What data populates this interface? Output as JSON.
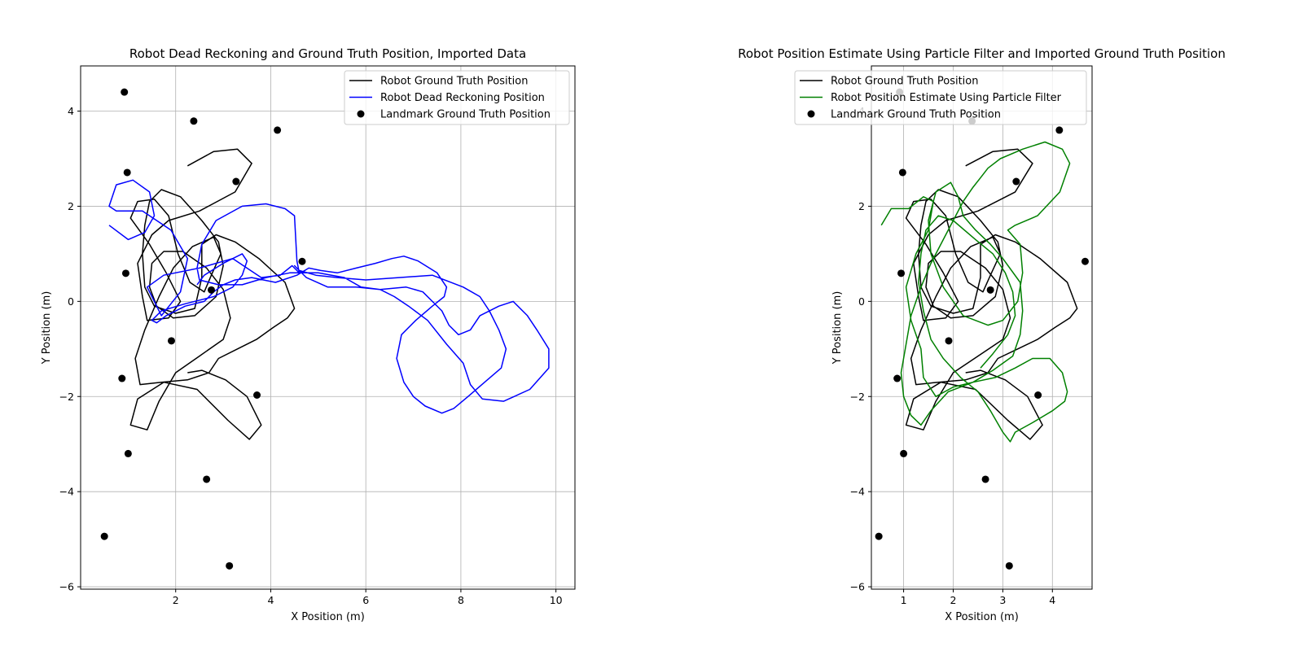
{
  "chart_data": [
    {
      "type": "line",
      "title": "Robot Dead Reckoning and Ground Truth Position, Imported Data",
      "xlabel": "X Position (m)",
      "ylabel": "Y Position (m)",
      "xlim": [
        0.0,
        10.4
      ],
      "ylim": [
        -6.05,
        4.95
      ],
      "xticks": [
        2,
        4,
        6,
        8,
        10
      ],
      "yticks": [
        -6,
        -4,
        -2,
        0,
        2,
        4
      ],
      "xtick_labels": [
        "2",
        "4",
        "6",
        "8",
        "10"
      ],
      "ytick_labels": [
        "−6",
        "−4",
        "−2",
        "0",
        "2",
        "4"
      ],
      "grid": true,
      "legend_position": "top-right",
      "series": [
        {
          "name": "Robot Ground Truth Position",
          "color": "#000000",
          "kind": "line",
          "x": [
            2.25,
            2.8,
            3.3,
            3.6,
            3.25,
            2.5,
            1.85,
            1.5,
            1.2,
            1.3,
            1.4,
            1.85,
            2.1,
            1.8,
            1.45,
            1.05,
            1.2,
            1.55,
            1.85,
            2.05,
            2.3,
            2.6,
            2.75,
            2.95,
            2.8,
            2.35,
            1.95,
            1.65,
            1.35,
            1.15,
            1.25,
            1.7,
            2.25,
            2.7,
            2.9,
            3.3,
            3.7,
            4.05,
            4.35,
            4.5,
            4.3,
            3.75,
            3.25,
            2.85,
            2.55,
            2.55,
            2.4,
            2.0,
            1.55,
            1.35,
            1.3,
            1.35,
            1.45,
            1.7,
            2.1,
            2.55,
            2.9,
            3.0,
            2.85,
            2.4,
            1.95,
            1.6,
            1.45,
            1.5,
            1.75,
            2.15,
            2.65,
            3.0,
            3.15,
            3.0,
            2.5,
            2.0,
            1.65,
            1.4,
            1.05,
            1.2,
            1.75,
            2.45,
            3.1,
            3.55,
            3.8,
            3.5,
            3.05,
            2.55,
            2.25
          ],
          "y": [
            2.85,
            3.15,
            3.2,
            2.9,
            2.3,
            1.9,
            1.7,
            1.4,
            0.8,
            0.1,
            -0.4,
            -0.35,
            0.0,
            0.6,
            1.2,
            1.75,
            2.1,
            2.15,
            1.8,
            1.0,
            0.4,
            0.2,
            0.55,
            1.0,
            1.35,
            1.15,
            0.7,
            0.1,
            -0.6,
            -1.2,
            -1.75,
            -1.7,
            -1.65,
            -1.5,
            -1.2,
            -1.0,
            -0.8,
            -0.55,
            -0.35,
            -0.15,
            0.4,
            0.9,
            1.25,
            1.4,
            1.2,
            0.5,
            -0.15,
            -0.25,
            -0.1,
            0.3,
            1.0,
            1.6,
            2.1,
            2.35,
            2.2,
            1.7,
            1.25,
            0.75,
            0.1,
            -0.3,
            -0.35,
            -0.1,
            0.3,
            0.8,
            1.05,
            1.05,
            0.7,
            0.25,
            -0.35,
            -0.8,
            -1.15,
            -1.5,
            -2.1,
            -2.7,
            -2.6,
            -2.05,
            -1.7,
            -1.85,
            -2.5,
            -2.9,
            -2.6,
            -2.0,
            -1.65,
            -1.45,
            -1.5
          ]
        },
        {
          "name": " Robot Dead Reckoning Position",
          "color": "#0000ff",
          "kind": "line",
          "x": [
            0.6,
            1.0,
            1.35,
            1.55,
            1.45,
            1.1,
            0.75,
            0.6,
            0.75,
            1.3,
            1.9,
            2.25,
            2.1,
            1.7,
            1.4,
            1.75,
            2.5,
            3.2,
            3.8,
            4.2,
            4.45,
            4.6,
            4.55,
            4.5,
            4.3,
            3.9,
            3.4,
            2.85,
            2.55,
            2.45,
            2.5,
            2.9,
            3.4,
            3.9,
            4.4,
            5.0,
            5.55,
            5.9,
            6.3,
            6.85,
            7.2,
            7.4,
            7.6,
            7.75,
            7.95,
            8.2,
            8.4,
            8.8,
            9.1,
            9.4,
            9.6,
            9.85,
            9.85,
            9.45,
            8.9,
            8.45,
            8.2,
            8.05,
            7.7,
            7.3,
            6.9,
            6.6,
            6.3,
            5.8,
            5.2,
            4.75,
            4.5,
            4.6,
            4.95,
            5.4,
            6.0,
            6.7,
            7.4,
            8.05,
            8.4,
            8.6,
            8.8,
            8.95,
            8.85,
            8.5,
            8.15,
            7.85,
            7.6,
            7.25,
            7.0,
            6.8,
            6.65,
            6.75,
            7.05,
            7.4,
            7.65,
            7.7,
            7.5,
            7.1,
            6.8,
            6.55,
            6.2,
            5.8,
            5.4,
            5.05,
            4.8,
            4.55,
            4.1,
            3.6,
            3.25,
            3.0,
            2.8,
            2.6,
            2.2,
            1.8,
            1.6,
            1.5,
            1.7,
            2.2,
            2.8,
            3.2,
            3.4,
            3.5,
            3.4,
            3.0,
            2.6,
            2.45
          ],
          "y": [
            1.6,
            1.3,
            1.45,
            1.8,
            2.3,
            2.55,
            2.45,
            2.0,
            1.9,
            1.9,
            1.5,
            0.9,
            0.2,
            -0.3,
            0.3,
            0.55,
            0.7,
            0.9,
            0.5,
            0.55,
            0.75,
            0.6,
            0.85,
            1.8,
            1.95,
            2.05,
            2.0,
            1.7,
            1.2,
            0.7,
            0.45,
            0.35,
            0.35,
            0.5,
            0.6,
            0.6,
            0.5,
            0.3,
            0.25,
            0.3,
            0.2,
            0.0,
            -0.2,
            -0.5,
            -0.7,
            -0.6,
            -0.3,
            -0.1,
            0.0,
            -0.3,
            -0.6,
            -1.0,
            -1.4,
            -1.85,
            -2.1,
            -2.05,
            -1.75,
            -1.3,
            -0.9,
            -0.4,
            -0.1,
            0.1,
            0.25,
            0.3,
            0.3,
            0.5,
            0.75,
            0.65,
            0.55,
            0.5,
            0.45,
            0.5,
            0.55,
            0.3,
            0.1,
            -0.2,
            -0.6,
            -1.0,
            -1.4,
            -1.7,
            -2.0,
            -2.25,
            -2.35,
            -2.2,
            -2.0,
            -1.7,
            -1.2,
            -0.7,
            -0.4,
            -0.1,
            0.1,
            0.3,
            0.6,
            0.85,
            0.95,
            0.9,
            0.8,
            0.7,
            0.6,
            0.65,
            0.7,
            0.55,
            0.4,
            0.5,
            0.45,
            0.35,
            0.2,
            0.0,
            -0.1,
            -0.3,
            -0.45,
            -0.4,
            -0.2,
            -0.05,
            0.1,
            0.3,
            0.55,
            0.85,
            1.0,
            0.8,
            0.55,
            0.35
          ]
        },
        {
          "name": "Landmark Ground Truth Position",
          "color": "#000000",
          "kind": "scatter",
          "x": [
            0.92,
            2.38,
            4.14,
            0.98,
            3.27,
            0.95,
            4.66,
            2.75,
            1.91,
            0.87,
            3.71,
            1.0,
            2.65,
            0.5,
            3.13
          ],
          "y": [
            4.4,
            3.79,
            3.6,
            2.71,
            2.52,
            0.59,
            0.84,
            0.24,
            -0.83,
            -1.62,
            -1.97,
            -3.2,
            -3.74,
            -4.94,
            -5.56
          ]
        }
      ]
    },
    {
      "type": "line",
      "title": "Robot Position Estimate Using Particle Filter and Imported Ground Truth Position",
      "xlabel": "X Position (m)",
      "ylabel": "Y Position (m)",
      "xlim": [
        0.35,
        4.8
      ],
      "ylim": [
        -6.05,
        4.95
      ],
      "xticks": [
        1,
        2,
        3,
        4
      ],
      "yticks": [
        -6,
        -4,
        -2,
        0,
        2,
        4
      ],
      "xtick_labels": [
        "1",
        "2",
        "3",
        "4"
      ],
      "ytick_labels": [
        "−6",
        "−4",
        "−2",
        "0",
        "2",
        "4"
      ],
      "grid": true,
      "legend_position": "top-right",
      "series": [
        {
          "name": "Robot Ground Truth Position",
          "color": "#000000",
          "kind": "line",
          "x": [
            2.25,
            2.8,
            3.3,
            3.6,
            3.25,
            2.5,
            1.85,
            1.5,
            1.2,
            1.3,
            1.4,
            1.85,
            2.1,
            1.8,
            1.45,
            1.05,
            1.2,
            1.55,
            1.85,
            2.05,
            2.3,
            2.6,
            2.75,
            2.95,
            2.8,
            2.35,
            1.95,
            1.65,
            1.35,
            1.15,
            1.25,
            1.7,
            2.25,
            2.7,
            2.9,
            3.3,
            3.7,
            4.05,
            4.35,
            4.5,
            4.3,
            3.75,
            3.25,
            2.85,
            2.55,
            2.55,
            2.4,
            2.0,
            1.55,
            1.35,
            1.3,
            1.35,
            1.45,
            1.7,
            2.1,
            2.55,
            2.9,
            3.0,
            2.85,
            2.4,
            1.95,
            1.6,
            1.45,
            1.5,
            1.75,
            2.15,
            2.65,
            3.0,
            3.15,
            3.0,
            2.5,
            2.0,
            1.65,
            1.4,
            1.05,
            1.2,
            1.75,
            2.45,
            3.1,
            3.55,
            3.8,
            3.5,
            3.05,
            2.55,
            2.25
          ],
          "y": [
            2.85,
            3.15,
            3.2,
            2.9,
            2.3,
            1.9,
            1.7,
            1.4,
            0.8,
            0.1,
            -0.4,
            -0.35,
            0.0,
            0.6,
            1.2,
            1.75,
            2.1,
            2.15,
            1.8,
            1.0,
            0.4,
            0.2,
            0.55,
            1.0,
            1.35,
            1.15,
            0.7,
            0.1,
            -0.6,
            -1.2,
            -1.75,
            -1.7,
            -1.65,
            -1.5,
            -1.2,
            -1.0,
            -0.8,
            -0.55,
            -0.35,
            -0.15,
            0.4,
            0.9,
            1.25,
            1.4,
            1.2,
            0.5,
            -0.15,
            -0.25,
            -0.1,
            0.3,
            1.0,
            1.6,
            2.1,
            2.35,
            2.2,
            1.7,
            1.25,
            0.75,
            0.1,
            -0.3,
            -0.35,
            -0.1,
            0.3,
            0.8,
            1.05,
            1.05,
            0.7,
            0.25,
            -0.35,
            -0.8,
            -1.15,
            -1.5,
            -2.1,
            -2.7,
            -2.6,
            -2.05,
            -1.7,
            -1.85,
            -2.5,
            -2.9,
            -2.6,
            -2.0,
            -1.65,
            -1.45,
            -1.5
          ]
        },
        {
          "name": " Robot Position Estimate Using Particle Filter",
          "color": "#008000",
          "kind": "line",
          "x": [
            0.55,
            0.75,
            1.1,
            1.4,
            1.6,
            1.5,
            1.25,
            1.05,
            1.15,
            1.35,
            1.4,
            1.65,
            2.0,
            2.4,
            2.8,
            3.2,
            3.35,
            3.4,
            3.35,
            3.0,
            2.75,
            2.45,
            2.2,
            2.1,
            1.95,
            1.65,
            1.5,
            1.55,
            1.8,
            2.2,
            2.7,
            3.0,
            3.3,
            3.4,
            3.35,
            3.1,
            3.25,
            3.7,
            4.15,
            4.35,
            4.2,
            3.85,
            3.4,
            2.95,
            2.7,
            2.55,
            2.4,
            2.2,
            2.0,
            1.8,
            1.55,
            1.35,
            1.15,
            1.05,
            0.95,
            1.0,
            1.15,
            1.35,
            1.55,
            1.9,
            2.4,
            2.85,
            3.25,
            3.6,
            3.95,
            4.2,
            4.3,
            4.25,
            4.0,
            3.6,
            3.25,
            3.15,
            3.0,
            2.75,
            2.5,
            2.15,
            1.8,
            1.55,
            1.4,
            1.3,
            1.35,
            1.45,
            1.7,
            2.0,
            2.45,
            2.8,
            3.05,
            3.2,
            3.25,
            3.1,
            2.8,
            2.55
          ],
          "y": [
            1.6,
            1.95,
            1.95,
            2.2,
            2.1,
            1.5,
            1.0,
            0.3,
            -0.4,
            -1.0,
            -1.6,
            -2.0,
            -1.8,
            -1.7,
            -1.45,
            -1.15,
            -0.7,
            -0.2,
            0.4,
            0.9,
            1.2,
            1.5,
            1.8,
            2.2,
            2.5,
            2.3,
            1.7,
            1.0,
            0.3,
            -0.3,
            -0.5,
            -0.4,
            0.0,
            0.6,
            1.2,
            1.5,
            1.6,
            1.8,
            2.3,
            2.9,
            3.2,
            3.35,
            3.2,
            3.0,
            2.8,
            2.6,
            2.4,
            2.1,
            1.7,
            1.3,
            0.8,
            0.3,
            -0.3,
            -0.9,
            -1.5,
            -2.0,
            -2.4,
            -2.6,
            -2.3,
            -1.9,
            -1.7,
            -1.6,
            -1.4,
            -1.2,
            -1.2,
            -1.5,
            -1.9,
            -2.1,
            -2.3,
            -2.55,
            -2.75,
            -2.95,
            -2.75,
            -2.3,
            -1.9,
            -1.6,
            -1.2,
            -0.8,
            -0.2,
            0.4,
            1.0,
            1.5,
            1.8,
            1.7,
            1.3,
            1.0,
            0.6,
            0.2,
            -0.3,
            -0.7,
            -1.1,
            -1.4
          ]
        },
        {
          "name": "Landmark Ground Truth Position",
          "color": "#000000",
          "kind": "scatter",
          "x": [
            0.92,
            2.38,
            4.14,
            0.98,
            3.27,
            0.95,
            4.66,
            2.75,
            1.91,
            0.87,
            3.71,
            1.0,
            2.65,
            0.5,
            3.13
          ],
          "y": [
            4.4,
            3.79,
            3.6,
            2.71,
            2.52,
            0.59,
            0.84,
            0.24,
            -0.83,
            -1.62,
            -1.97,
            -3.2,
            -3.74,
            -4.94,
            -5.56
          ]
        }
      ]
    }
  ]
}
